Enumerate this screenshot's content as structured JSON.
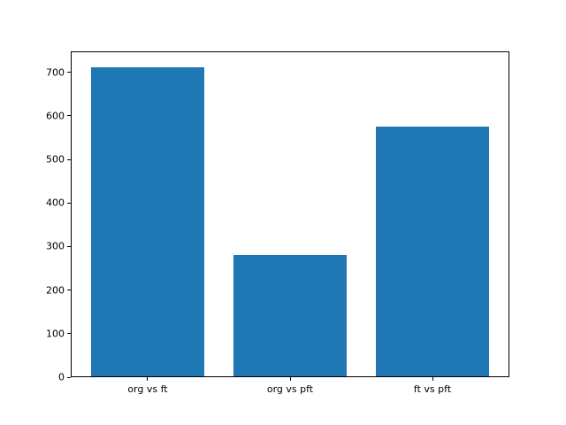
{
  "chart_data": {
    "type": "bar",
    "categories": [
      "org vs ft",
      "org vs pft",
      "ft vs pft"
    ],
    "values": [
      712,
      281,
      575
    ],
    "title": "",
    "xlabel": "",
    "ylabel": "",
    "ylim": [
      0,
      748
    ],
    "yticks": [
      0,
      100,
      200,
      300,
      400,
      500,
      600,
      700
    ],
    "bar_color": "#1f77b4",
    "grid": false,
    "legend": false
  },
  "colors": {
    "background": "#ffffff",
    "axis": "#000000",
    "tick_text": "#000000"
  }
}
